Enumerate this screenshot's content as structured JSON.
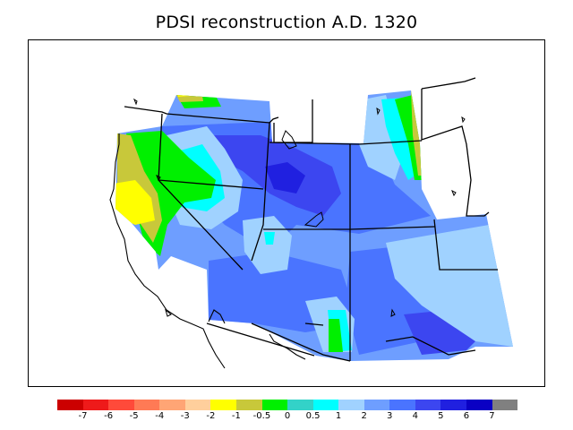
{
  "title": "PDSI reconstruction A.D. 1320",
  "legend": {
    "colors": [
      "#cc0000",
      "#ee1a1a",
      "#ff4a3a",
      "#ff7a55",
      "#ffa575",
      "#ffcf9c",
      "#ffff00",
      "#c8c83a",
      "#00f000",
      "#33d2c8",
      "#00ffff",
      "#a0d2ff",
      "#6e9eff",
      "#4a74ff",
      "#3c46f0",
      "#2020e0",
      "#0a00c4",
      "#808080"
    ],
    "ticks": [
      "-7",
      "-6",
      "-5",
      "-4",
      "-3",
      "-2",
      "-1",
      "-0.5",
      "0",
      "0.5",
      "1",
      "2",
      "3",
      "4",
      "5",
      "6",
      "7"
    ]
  }
}
